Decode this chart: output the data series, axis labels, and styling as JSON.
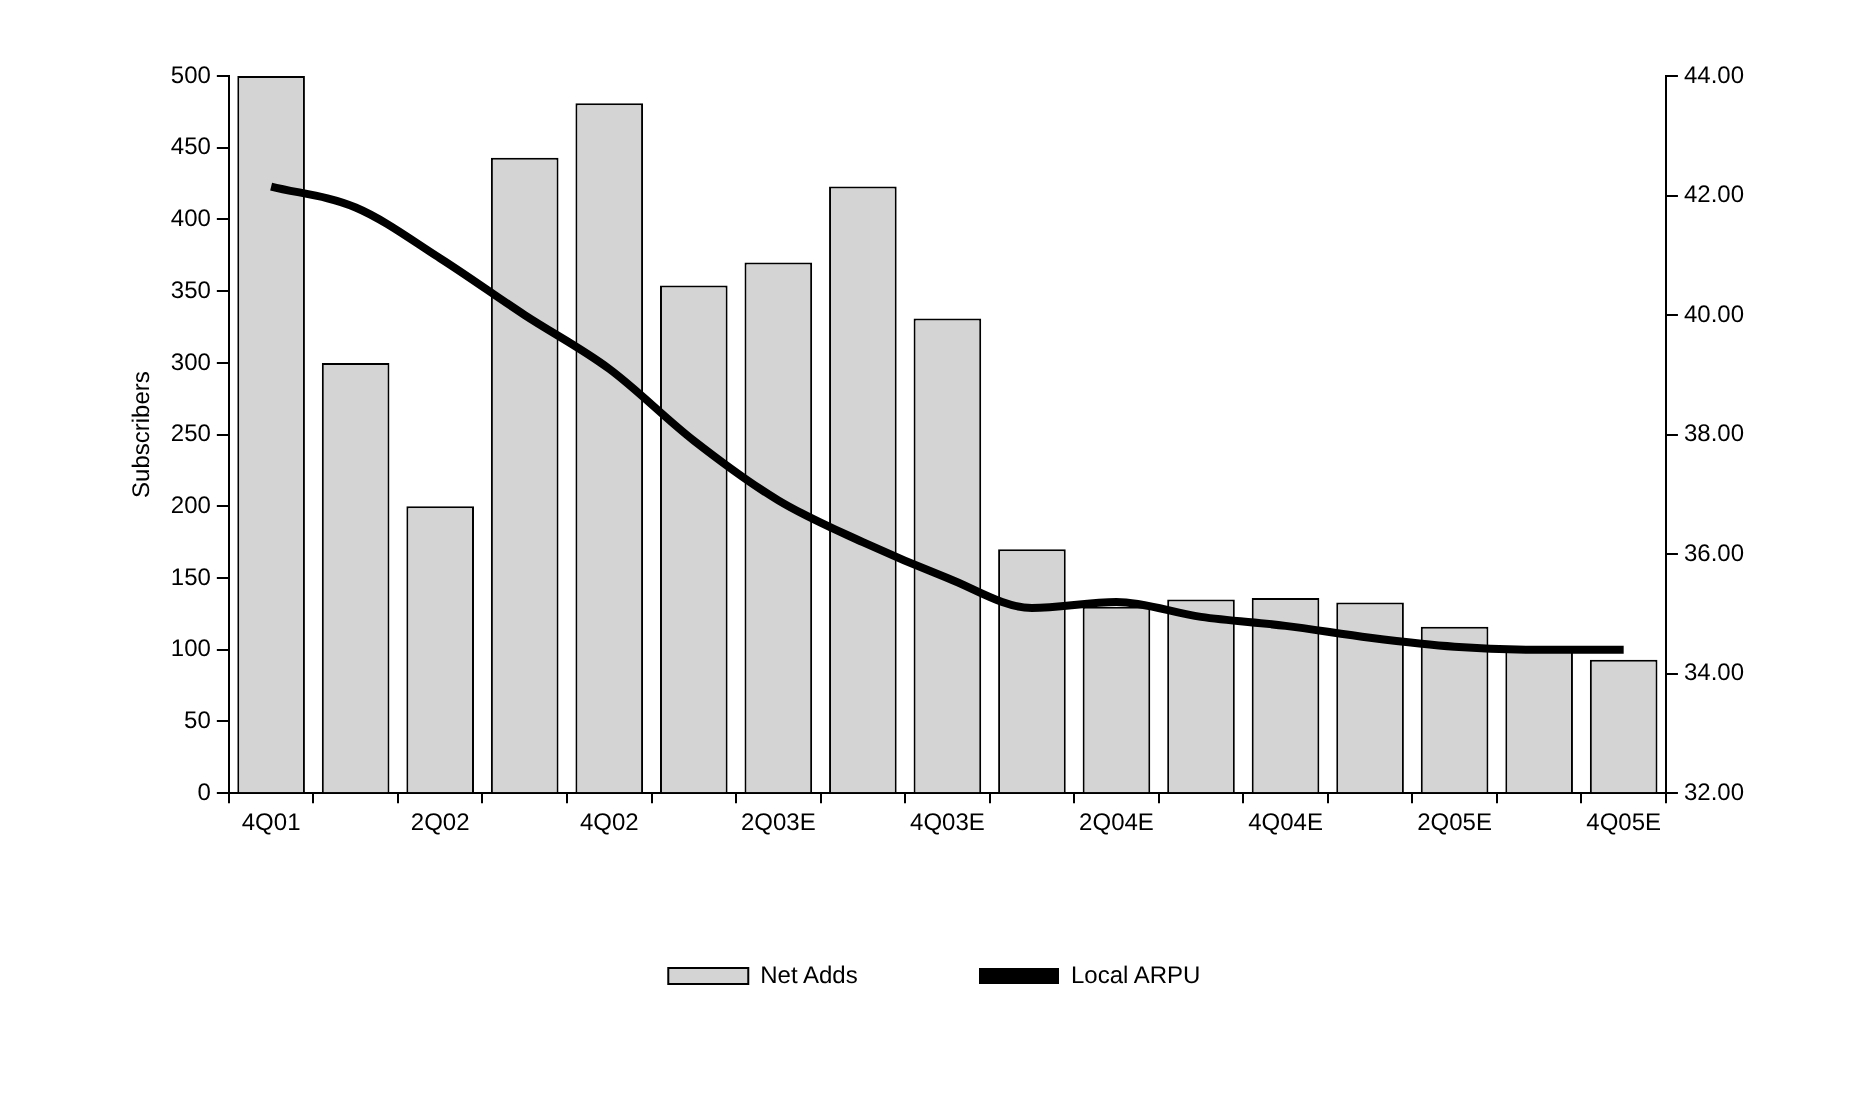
{
  "chart_data": {
    "type": "bar",
    "ylabel": "Subscribers",
    "categories": [
      "4Q01",
      null,
      "2Q02",
      null,
      "4Q02",
      null,
      "2Q03E",
      null,
      "4Q03E",
      null,
      "2Q04E",
      null,
      "4Q04E",
      null,
      "2Q05E",
      null,
      "4Q05E"
    ],
    "series": [
      {
        "name": "Net Adds",
        "color": "#d4d4d4",
        "values": [
          500,
          300,
          200,
          443,
          481,
          354,
          370,
          423,
          331,
          170,
          130,
          135,
          136,
          133,
          116,
          100,
          93
        ]
      },
      {
        "name": "Local ARPU",
        "type": "line",
        "axis": "y2",
        "color": "#000000",
        "values": [
          42.15,
          41.8,
          40.95,
          40.0,
          39.1,
          37.9,
          36.9,
          36.2,
          35.6,
          35.1,
          35.2,
          34.95,
          34.8,
          34.6,
          34.45,
          34.4,
          34.4
        ]
      }
    ],
    "ylim": [
      0,
      500
    ],
    "yticks": [
      0,
      50,
      100,
      150,
      200,
      250,
      300,
      350,
      400,
      450,
      500
    ],
    "y2lim": [
      32,
      44
    ],
    "y2ticks": [
      {
        "value": 32,
        "label": "32.00"
      },
      {
        "value": 34,
        "label": "34.00"
      },
      {
        "value": 36,
        "label": "36.00"
      },
      {
        "value": 38,
        "label": "38.00"
      },
      {
        "value": 40,
        "label": "40.00"
      },
      {
        "value": 42,
        "label": "42.00"
      },
      {
        "value": 44,
        "label": "44.00"
      }
    ],
    "grid": false,
    "legend": "bottom",
    "marker": "none",
    "line_style": "solid"
  }
}
